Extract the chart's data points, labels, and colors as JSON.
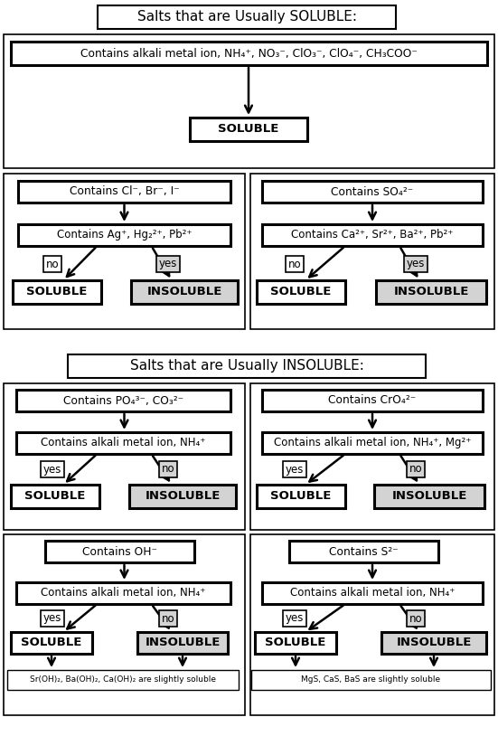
{
  "bg_color": "#ffffff",
  "title_soluble": "Salts that are Usually SOLUBLE:",
  "title_insoluble": "Salts that are Usually INSOLUBLE:",
  "section1_top": "Contains alkali metal ion, NH₄⁺, NO₃⁻, ClO₃⁻, ClO₄⁻, CH₃COO⁻",
  "section1_result": "SOLUBLE",
  "sec2_left_top": "Contains Cl⁻, Br⁻, I⁻",
  "sec2_left_mid": "Contains Ag⁺, Hg₂²⁺, Pb²⁺",
  "sec2_right_top": "Contains SO₄²⁻",
  "sec2_right_mid": "Contains Ca²⁺, Sr²⁺, Ba²⁺, Pb²⁺",
  "sec3_left_top": "Contains PO₄³⁻, CO₃²⁻",
  "sec3_left_mid": "Contains alkali metal ion, NH₄⁺",
  "sec3_right_top": "Contains CrO₄²⁻",
  "sec3_right_mid": "Contains alkali metal ion, NH₄⁺, Mg²⁺",
  "sec4_left_top": "Contains OH⁻",
  "sec4_left_mid": "Contains alkali metal ion, NH₄⁺",
  "sec4_right_top": "Contains S²⁻",
  "sec4_right_mid": "Contains alkali metal ion, NH₄⁺",
  "note_left": "Sr(OH)₂, Ba(OH)₂, Ca(OH)₂ are slightly soluble",
  "note_right": "MgS, CaS, BaS are slightly soluble",
  "insoluble_color": "#d3d3d3",
  "yes_color": "#d3d3d3",
  "no_color": "#ffffff"
}
